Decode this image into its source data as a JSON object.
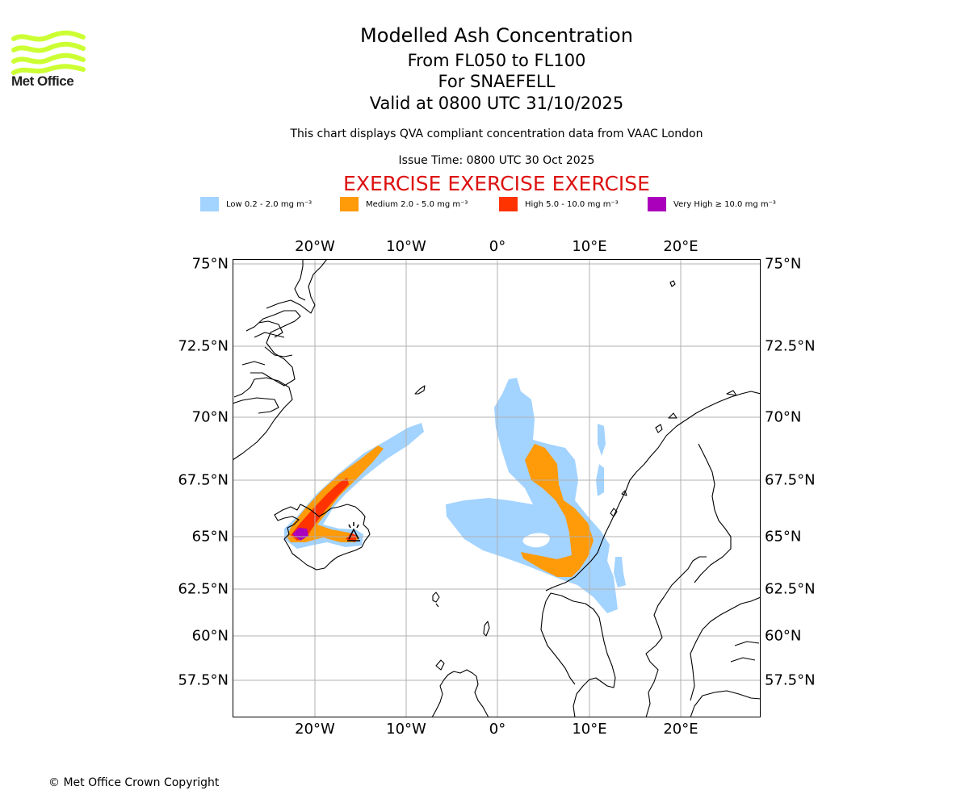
{
  "logo": {
    "text": "Met Office",
    "icon": "met-office-wave-logo",
    "color": "#ccff33"
  },
  "header": {
    "title": "Modelled Ash Concentration",
    "subtitle_1": "From FL050 to FL100",
    "subtitle_2": "For SNAEFELL",
    "subtitle_3": "Valid at 0800 UTC 31/10/2025",
    "description": "This chart displays QVA compliant concentration data from VAAC London",
    "issue_time": "Issue Time: 0800 UTC 30 Oct 2025",
    "exercise_banner": "EXERCISE EXERCISE EXERCISE",
    "exercise_color": "#dd1111"
  },
  "legend": [
    {
      "label": "Low 0.2 - 2.0 mg m⁻³",
      "color": "#a3d3ff"
    },
    {
      "label": "Medium 2.0 - 5.0 mg m⁻³",
      "color": "#ff9a08"
    },
    {
      "label": "High 5.0 - 10.0 mg m⁻³",
      "color": "#ff3300"
    },
    {
      "label": "Very High  ≥  10.0 mg m⁻³",
      "color": "#aa00bb"
    }
  ],
  "map": {
    "longitude_ticks": [
      "20°W",
      "10°W",
      "0°",
      "10°E",
      "20°E"
    ],
    "latitude_ticks": [
      "75°N",
      "72.5°N",
      "70°N",
      "67.5°N",
      "65°N",
      "62.5°N",
      "60°N",
      "57.5°N"
    ],
    "gridlines": true,
    "volcano_marker": "volcano-symbol-icon"
  },
  "footer": {
    "copyright": "© Met Office Crown Copyright"
  }
}
